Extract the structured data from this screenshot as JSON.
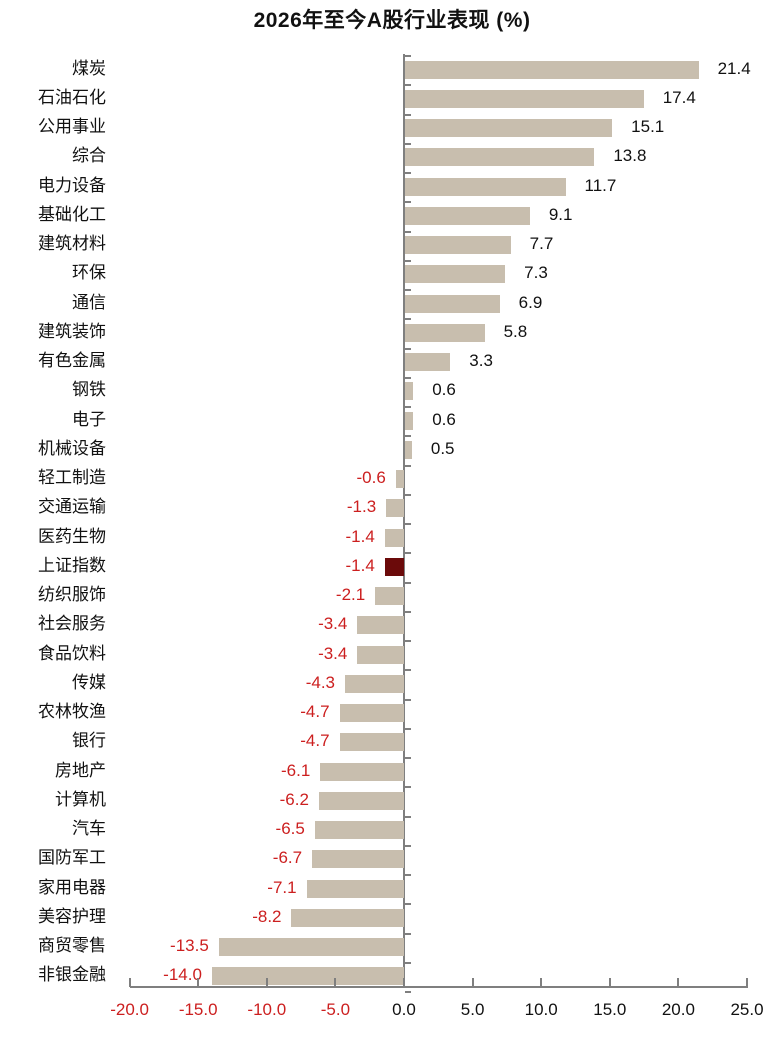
{
  "chart_data": {
    "type": "bar",
    "orientation": "horizontal",
    "title": "2026年至今A股行业表现 (%)",
    "xlabel": "",
    "ylabel": "",
    "xlim": [
      -20.0,
      25.0
    ],
    "xticks": [
      "-20.0",
      "-15.0",
      "-10.0",
      "-5.0",
      "0.0",
      "5.0",
      "10.0",
      "15.0",
      "20.0",
      "25.0"
    ],
    "grid": false,
    "legend": null,
    "colors": {
      "bar": "#c8beae",
      "highlight": "#6b0a0a",
      "negative_label": "#cc1f1f",
      "positive_label": "#111111"
    },
    "categories": [
      "煤炭",
      "石油石化",
      "公用事业",
      "综合",
      "电力设备",
      "基础化工",
      "建筑材料",
      "环保",
      "通信",
      "建筑装饰",
      "有色金属",
      "钢铁",
      "电子",
      "机械设备",
      "轻工制造",
      "交通运输",
      "医药生物",
      "上证指数",
      "纺织服饰",
      "社会服务",
      "食品饮料",
      "传媒",
      "农林牧渔",
      "银行",
      "房地产",
      "计算机",
      "汽车",
      "国防军工",
      "家用电器",
      "美容护理",
      "商贸零售",
      "非银金融"
    ],
    "values": [
      21.4,
      17.4,
      15.1,
      13.8,
      11.7,
      9.1,
      7.7,
      7.3,
      6.9,
      5.8,
      3.3,
      0.6,
      0.6,
      0.5,
      -0.6,
      -1.3,
      -1.4,
      -1.4,
      -2.1,
      -3.4,
      -3.4,
      -4.3,
      -4.7,
      -4.7,
      -6.1,
      -6.2,
      -6.5,
      -6.7,
      -7.1,
      -8.2,
      -13.5,
      -14.0
    ],
    "value_labels": [
      "21.4",
      "17.4",
      "15.1",
      "13.8",
      "11.7",
      "9.1",
      "7.7",
      "7.3",
      "6.9",
      "5.8",
      "3.3",
      "0.6",
      "0.6",
      "0.5",
      "-0.6",
      "-1.3",
      "-1.4",
      "-1.4",
      "-2.1",
      "-3.4",
      "-3.4",
      "-4.3",
      "-4.7",
      "-4.7",
      "-6.1",
      "-6.2",
      "-6.5",
      "-6.7",
      "-7.1",
      "-8.2",
      "-13.5",
      "-14.0"
    ],
    "highlight_category": "上证指数"
  }
}
